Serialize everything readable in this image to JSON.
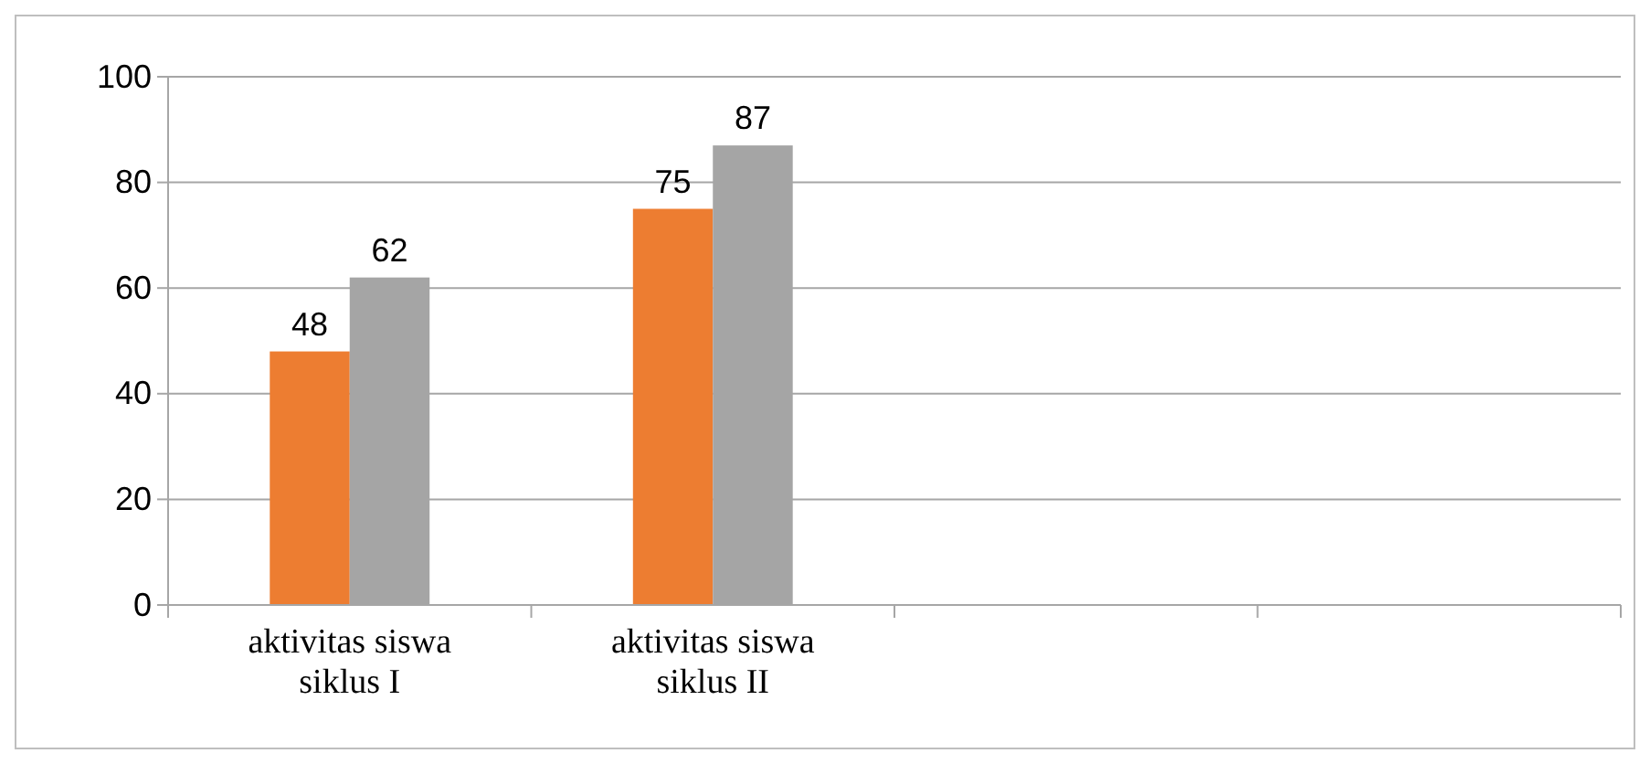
{
  "chart_data": {
    "type": "bar",
    "categories": [
      "aktivitas siswa siklus I",
      "aktivitas siswa siklus II",
      null,
      null
    ],
    "series": [
      {
        "color": "#ed7d31",
        "values": [
          48,
          75,
          null,
          null
        ]
      },
      {
        "color": "#a5a5a5",
        "values": [
          62,
          87,
          null,
          null
        ]
      }
    ],
    "ylim": [
      0,
      100
    ],
    "yticks": [
      0,
      20,
      40,
      60,
      80,
      100
    ],
    "grid": "y",
    "data_labels": true
  }
}
